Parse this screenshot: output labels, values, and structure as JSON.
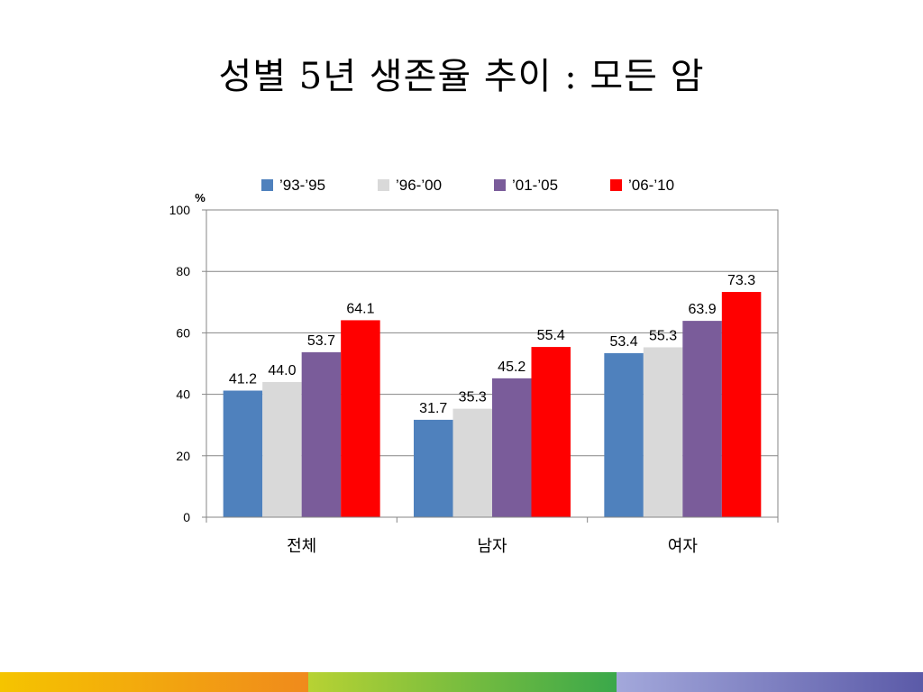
{
  "title": "성별 5년 생존율 추이 : 모든 암",
  "chart_data": {
    "type": "bar",
    "categories": [
      "전체",
      "남자",
      "여자"
    ],
    "series": [
      {
        "name": "’93-’95",
        "color": "#4f81bd",
        "values": [
          41.2,
          31.7,
          53.4
        ]
      },
      {
        "name": "’96-’00",
        "color": "#d9d9d9",
        "values": [
          44.0,
          35.3,
          55.3
        ]
      },
      {
        "name": "’01-’05",
        "color": "#7a5c9a",
        "values": [
          53.7,
          45.2,
          63.9
        ]
      },
      {
        "name": "’06-’10",
        "color": "#ff0000",
        "values": [
          64.1,
          55.4,
          73.3
        ]
      }
    ],
    "ylabel": "%",
    "yticks": [
      0,
      20,
      40,
      60,
      80,
      100
    ],
    "ylim": [
      0,
      100
    ],
    "legend": "top",
    "grid": true
  }
}
